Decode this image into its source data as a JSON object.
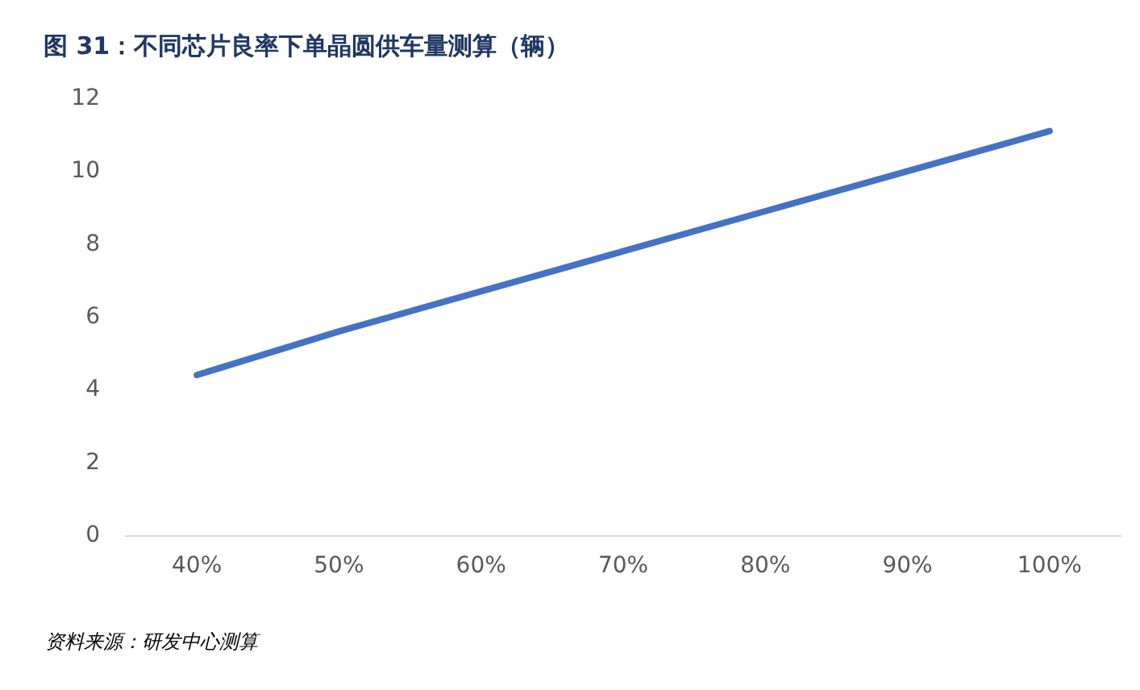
{
  "chart_data": {
    "type": "line",
    "title": "图 31：不同芯片良率下单晶圆供车量测算（辆）",
    "categories": [
      "40%",
      "50%",
      "60%",
      "70%",
      "80%",
      "90%",
      "100%"
    ],
    "series": [
      {
        "color": "#4472c4",
        "values": [
          4.4,
          5.6,
          6.7,
          7.8,
          8.9,
          10,
          11.1
        ]
      }
    ],
    "ylim": [
      0,
      12
    ],
    "yticks": [
      0,
      2,
      4,
      6,
      8,
      10,
      12
    ],
    "grid": false,
    "marker": "none",
    "line_style": "solid",
    "annotations": [
      "资料来源：研发中心测算"
    ]
  }
}
